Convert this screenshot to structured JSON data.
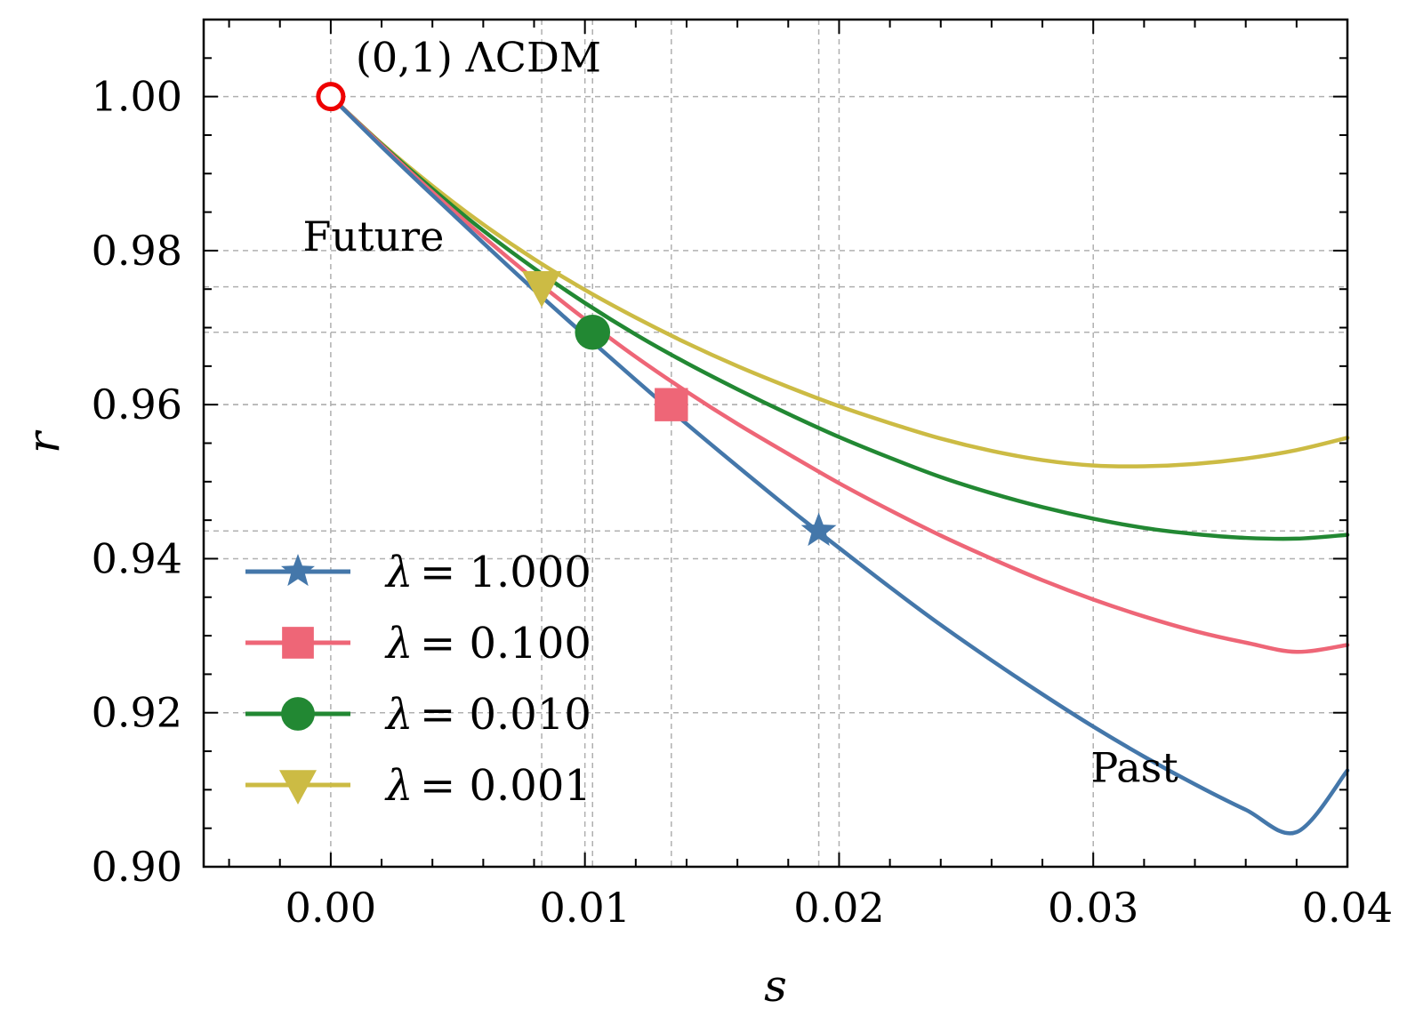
{
  "chart_data": {
    "type": "line",
    "title": "",
    "xlabel": "s",
    "ylabel": "r",
    "xlim": [
      -0.005,
      0.04
    ],
    "ylim": [
      0.9,
      1.01
    ],
    "xticks": [
      0.0,
      0.01,
      0.02,
      0.03,
      0.04
    ],
    "xtick_labels": [
      "0.00",
      "0.01",
      "0.02",
      "0.03",
      "0.04"
    ],
    "yticks": [
      0.9,
      0.92,
      0.94,
      0.96,
      0.98,
      1.0
    ],
    "ytick_labels": [
      "0.90",
      "0.92",
      "0.94",
      "0.96",
      "0.98",
      "1.00"
    ],
    "grid": true,
    "legend_position": "lower-left",
    "fixed_point": {
      "label": "(0,1) ΛCDM",
      "s": 0.0,
      "r": 1.0,
      "color": "#ee0000"
    },
    "annotations": [
      {
        "text": "Future",
        "s": -0.0011,
        "r": 0.98
      },
      {
        "text": "Past",
        "s": 0.0299,
        "r": 0.911
      }
    ],
    "series": [
      {
        "name": "λ = 1.000",
        "lambda_text": "λ",
        "value_text": "= 1.000",
        "color": "#4477aa",
        "marker": "star",
        "s": [
          0.0,
          0.002,
          0.004,
          0.006,
          0.008,
          0.01,
          0.012,
          0.014,
          0.016,
          0.018,
          0.02,
          0.022,
          0.024,
          0.026,
          0.028,
          0.03,
          0.032,
          0.034,
          0.036,
          0.038,
          0.04
        ],
        "r": [
          1.0,
          0.9935,
          0.9872,
          0.981,
          0.9749,
          0.969,
          0.9632,
          0.9575,
          0.952,
          0.9466,
          0.9414,
          0.9363,
          0.9314,
          0.9268,
          0.9224,
          0.9182,
          0.9143,
          0.9107,
          0.9074,
          0.9045,
          0.9125
        ],
        "marker_point": {
          "s": 0.0192,
          "r": 0.9436
        },
        "ref_lines": {
          "s": 0.0192,
          "r": 0.9436
        }
      },
      {
        "name": "λ = 0.100",
        "lambda_text": "λ",
        "value_text": "= 0.100",
        "color": "#ee6677",
        "marker": "square",
        "s": [
          0.0,
          0.002,
          0.004,
          0.006,
          0.008,
          0.01,
          0.012,
          0.014,
          0.016,
          0.018,
          0.02,
          0.022,
          0.024,
          0.026,
          0.028,
          0.03,
          0.032,
          0.034,
          0.036,
          0.038,
          0.04
        ],
        "r": [
          1.0,
          0.9937,
          0.9876,
          0.9818,
          0.9763,
          0.9711,
          0.9662,
          0.9617,
          0.9575,
          0.9536,
          0.9498,
          0.9463,
          0.943,
          0.94,
          0.9372,
          0.9347,
          0.9325,
          0.9306,
          0.9291,
          0.9279,
          0.9288
        ],
        "marker_point": {
          "s": 0.0134,
          "r": 0.96
        },
        "ref_lines": {
          "s": 0.0134,
          "r": 0.96
        }
      },
      {
        "name": "λ = 0.010",
        "lambda_text": "λ",
        "value_text": "= 0.010",
        "color": "#228833",
        "marker": "circle",
        "s": [
          0.0,
          0.002,
          0.004,
          0.006,
          0.008,
          0.01,
          0.012,
          0.014,
          0.016,
          0.018,
          0.02,
          0.022,
          0.024,
          0.026,
          0.028,
          0.03,
          0.032,
          0.034,
          0.036,
          0.038,
          0.04
        ],
        "r": [
          1.0,
          0.9938,
          0.988,
          0.9826,
          0.9777,
          0.9732,
          0.9691,
          0.9654,
          0.962,
          0.9588,
          0.9558,
          0.9531,
          0.9506,
          0.9485,
          0.9467,
          0.9452,
          0.944,
          0.9432,
          0.9427,
          0.9426,
          0.9431
        ],
        "marker_point": {
          "s": 0.0103,
          "r": 0.9694
        },
        "ref_lines": {
          "s": 0.0103,
          "r": 0.9694
        }
      },
      {
        "name": "λ = 0.001",
        "lambda_text": "λ",
        "value_text": "= 0.001",
        "color": "#ccbb44",
        "marker": "triangle-down",
        "s": [
          0.0,
          0.002,
          0.004,
          0.006,
          0.008,
          0.01,
          0.012,
          0.014,
          0.016,
          0.018,
          0.02,
          0.022,
          0.024,
          0.026,
          0.028,
          0.03,
          0.032,
          0.034,
          0.036,
          0.038,
          0.04
        ],
        "r": [
          1.0,
          0.9939,
          0.9884,
          0.9834,
          0.9789,
          0.9749,
          0.9713,
          0.968,
          0.965,
          0.9623,
          0.9598,
          0.9576,
          0.9556,
          0.954,
          0.9528,
          0.9521,
          0.952,
          0.9523,
          0.953,
          0.9541,
          0.9557
        ],
        "marker_point": {
          "s": 0.0083,
          "r": 0.9753
        },
        "ref_lines": {
          "s": 0.0083,
          "r": 0.9753
        }
      }
    ]
  }
}
